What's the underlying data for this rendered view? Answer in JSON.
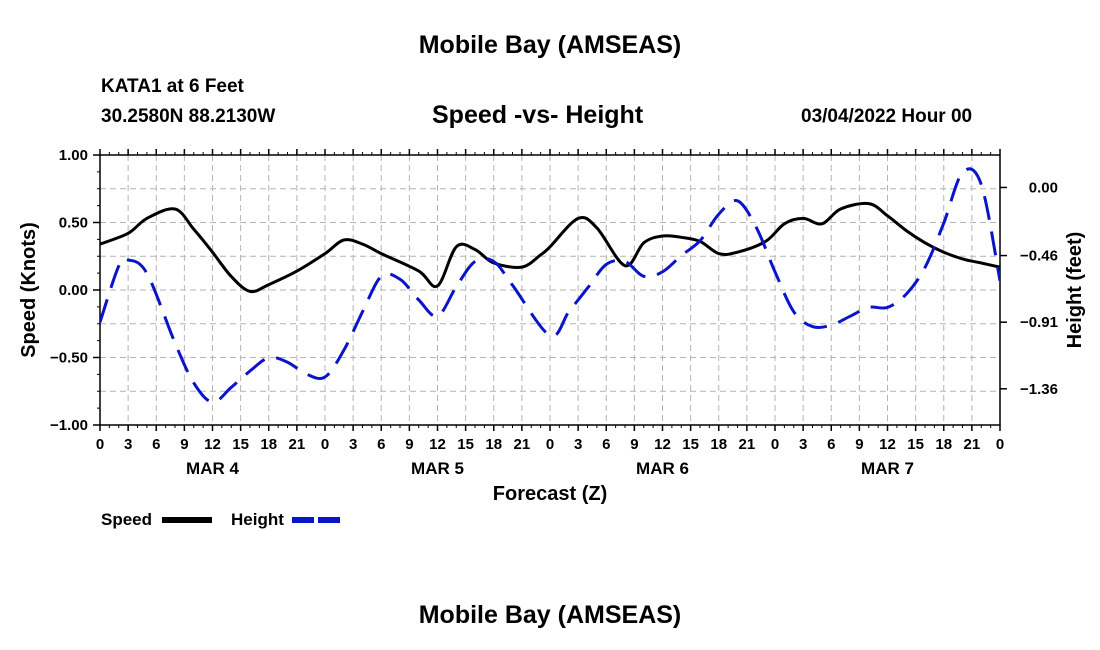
{
  "title": "Mobile Bay (AMSEAS)",
  "station_line": "KATA1 at 6 Feet",
  "coords_line": "30.2580N  88.2130W",
  "subtitle": "Speed -vs- Height",
  "datestamp": "03/04/2022 Hour 00",
  "bottom_title": "Mobile Bay (AMSEAS)",
  "colors": {
    "speed": "#000000",
    "height": "#0a14c8",
    "grid": "#b4b4b4"
  },
  "chart_data": {
    "type": "line",
    "xlabel": "Forecast (Z)",
    "ylabel": "Speed (Knots)",
    "y2label": "Height (feet)",
    "x_unit": "hours since 03/04/2022 00Z",
    "xlim": [
      0,
      96
    ],
    "ylim": [
      -1.0,
      1.0
    ],
    "y2lim": [
      -1.6045,
      0.2193
    ],
    "x_tick_labels": [
      "0",
      "3",
      "6",
      "9",
      "12",
      "15",
      "18",
      "21",
      "0",
      "3",
      "6",
      "9",
      "12",
      "15",
      "18",
      "21",
      "0",
      "3",
      "6",
      "9",
      "12",
      "15",
      "18",
      "21",
      "0",
      "3",
      "6",
      "9",
      "12",
      "15",
      "18",
      "21",
      "0"
    ],
    "day_labels": [
      {
        "label": "MAR 4",
        "x": 12
      },
      {
        "label": "MAR 5",
        "x": 36
      },
      {
        "label": "MAR 6",
        "x": 60
      },
      {
        "label": "MAR 7",
        "x": 84
      }
    ],
    "y_ticks": [
      1.0,
      0.5,
      0.0,
      -0.5,
      -1.0
    ],
    "y_tick_labels": [
      "1.00",
      "0.50",
      "0.00",
      "−0.50",
      "−1.00"
    ],
    "y2_ticks": [
      0.0,
      -0.46,
      -0.91,
      -1.36
    ],
    "y2_tick_labels": [
      "0.00",
      "−0.46",
      "−0.91",
      "−1.36"
    ],
    "grid": true,
    "legend_position": "bottom-left",
    "series": [
      {
        "name": "Speed",
        "axis": "left",
        "style": "solid",
        "x": [
          0,
          3,
          5,
          8,
          10,
          12,
          14,
          16,
          18,
          21,
          24,
          26,
          28,
          30,
          34,
          36,
          38,
          40,
          42,
          45,
          47,
          48,
          51,
          53,
          56,
          58,
          60,
          62,
          64,
          66,
          68,
          71,
          73,
          75,
          77,
          79,
          82,
          84,
          86,
          88,
          90,
          92,
          94,
          96
        ],
        "y": [
          0.34,
          0.42,
          0.53,
          0.6,
          0.45,
          0.28,
          0.1,
          -0.01,
          0.04,
          0.14,
          0.27,
          0.37,
          0.34,
          0.27,
          0.14,
          0.03,
          0.32,
          0.3,
          0.2,
          0.17,
          0.26,
          0.32,
          0.53,
          0.46,
          0.18,
          0.35,
          0.4,
          0.39,
          0.36,
          0.27,
          0.28,
          0.36,
          0.49,
          0.53,
          0.49,
          0.6,
          0.64,
          0.55,
          0.44,
          0.35,
          0.28,
          0.23,
          0.2,
          0.17
        ]
      },
      {
        "name": "Height",
        "axis": "right",
        "style": "dashed",
        "x": [
          0,
          2,
          3,
          5,
          8,
          10,
          12,
          14,
          16,
          18,
          20,
          22,
          24,
          26,
          28,
          30,
          32,
          34,
          36,
          38,
          40,
          42,
          44,
          48,
          50,
          52,
          54,
          56,
          58,
          60,
          62,
          64,
          66,
          68,
          70,
          72,
          74,
          76,
          78,
          80,
          82,
          84,
          86,
          88,
          90,
          92,
          94,
          96
        ],
        "y": [
          -0.91,
          -0.53,
          -0.49,
          -0.58,
          -1.05,
          -1.32,
          -1.45,
          -1.35,
          -1.24,
          -1.15,
          -1.18,
          -1.26,
          -1.28,
          -1.1,
          -0.84,
          -0.6,
          -0.62,
          -0.76,
          -0.87,
          -0.67,
          -0.5,
          -0.5,
          -0.66,
          -1.0,
          -0.84,
          -0.68,
          -0.52,
          -0.5,
          -0.6,
          -0.57,
          -0.46,
          -0.36,
          -0.18,
          -0.09,
          -0.27,
          -0.57,
          -0.84,
          -0.94,
          -0.93,
          -0.87,
          -0.81,
          -0.81,
          -0.72,
          -0.54,
          -0.24,
          0.1,
          0.02,
          -0.63
        ]
      }
    ]
  }
}
